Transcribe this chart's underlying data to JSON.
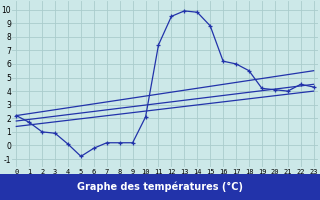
{
  "xlabel": "Graphe des températures (°C)",
  "bg_color": "#cce8e8",
  "grid_color": "#aacccc",
  "line_color": "#2233aa",
  "xlabel_bg": "#2233aa",
  "xlabel_fg": "#ffffff",
  "x_ticks": [
    0,
    1,
    2,
    3,
    4,
    5,
    6,
    7,
    8,
    9,
    10,
    11,
    12,
    13,
    14,
    15,
    16,
    17,
    18,
    19,
    20,
    21,
    22,
    23
  ],
  "yticks": [
    -1,
    0,
    1,
    2,
    3,
    4,
    5,
    6,
    7,
    8,
    9,
    10
  ],
  "ylim": [
    -1.6,
    10.6
  ],
  "xlim": [
    -0.3,
    23.3
  ],
  "curve1_x": [
    0,
    1,
    2,
    3,
    4,
    5,
    6,
    7,
    8,
    9,
    10,
    11,
    12,
    13,
    14,
    15,
    16,
    17,
    18,
    19,
    20,
    21,
    22,
    23
  ],
  "curve1_y": [
    2.2,
    1.7,
    1.0,
    0.9,
    0.1,
    -0.8,
    -0.2,
    0.2,
    0.2,
    0.2,
    2.1,
    7.4,
    9.5,
    9.9,
    9.8,
    8.8,
    6.2,
    6.0,
    5.5,
    4.2,
    4.1,
    4.0,
    4.5,
    4.3
  ],
  "line2_x": [
    0,
    23
  ],
  "line2_y": [
    2.2,
    5.5
  ],
  "line3_x": [
    0,
    23
  ],
  "line3_y": [
    1.8,
    4.5
  ],
  "line4_x": [
    0,
    23
  ],
  "line4_y": [
    1.4,
    4.0
  ]
}
